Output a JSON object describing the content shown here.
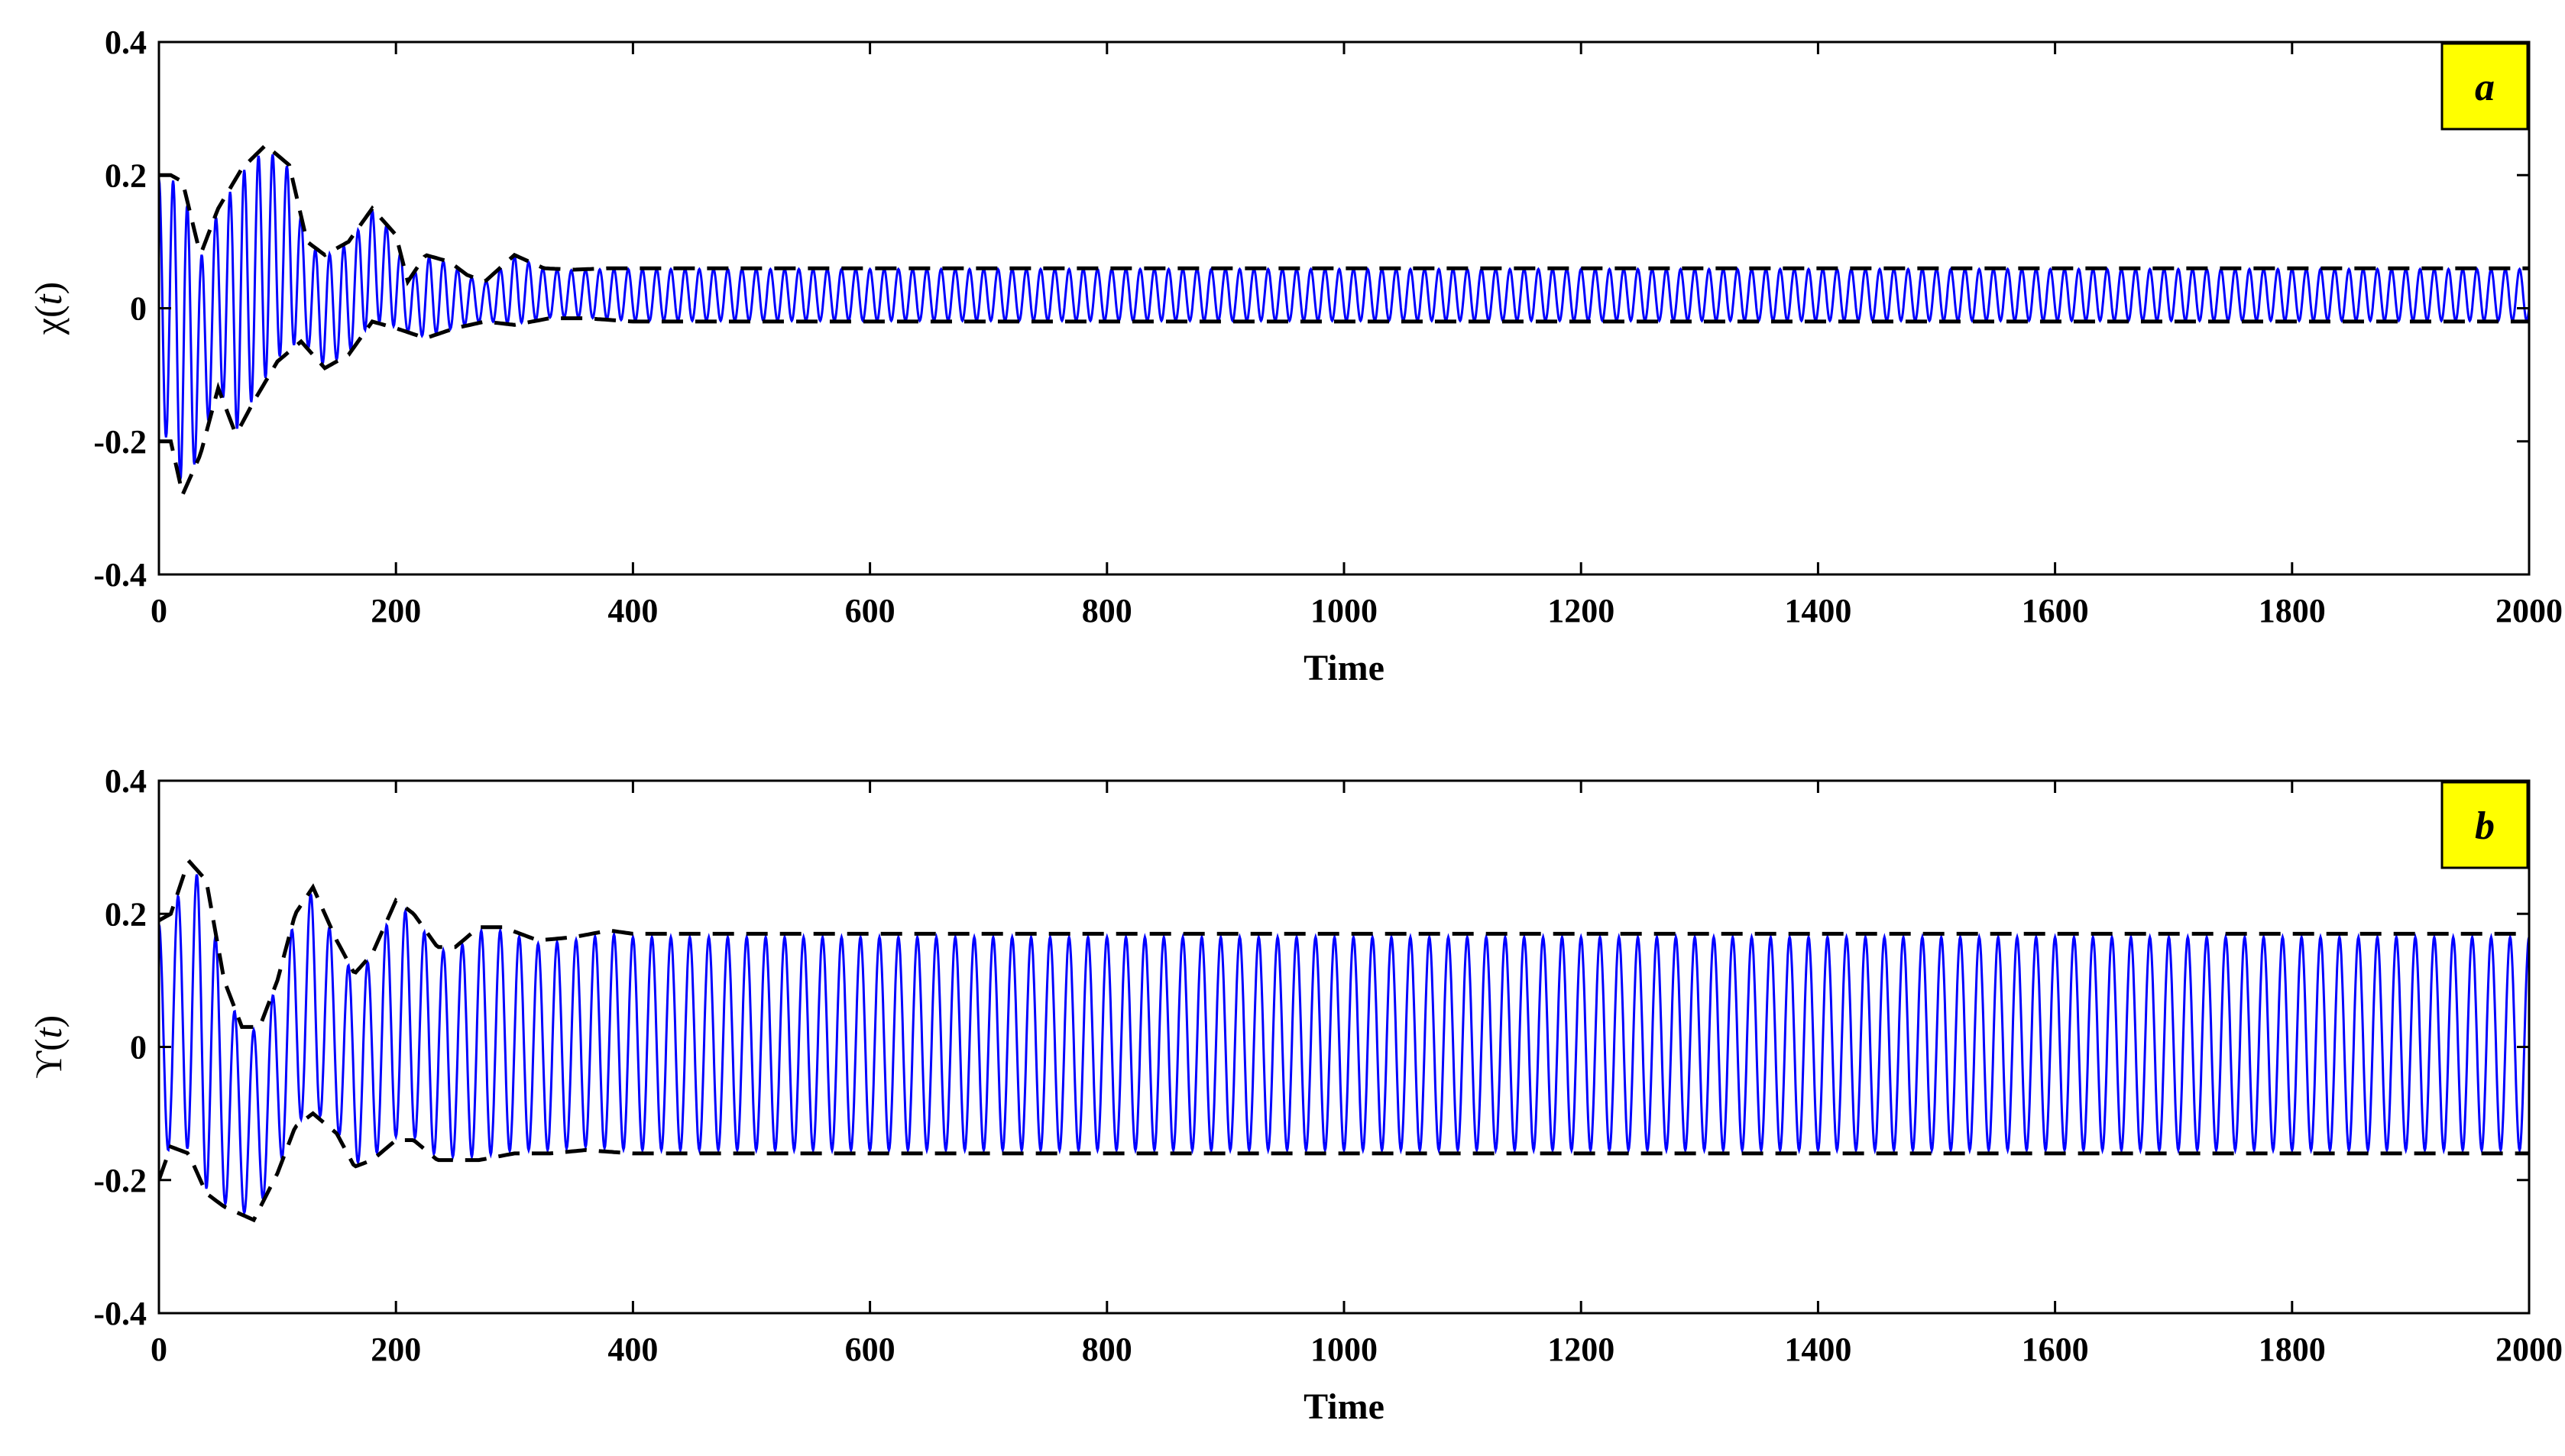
{
  "chart_data": [
    {
      "type": "line",
      "panel_label": "a",
      "ylabel_main": "χ(",
      "ylabel_var": "t",
      "ylabel_close": ")",
      "xlabel": "Time",
      "xlim": [
        0,
        2000
      ],
      "ylim": [
        -0.4,
        0.4
      ],
      "xticks": [
        0,
        200,
        400,
        600,
        800,
        1000,
        1200,
        1400,
        1600,
        1800,
        2000
      ],
      "yticks": [
        -0.4,
        -0.2,
        0,
        0.2,
        0.4
      ],
      "series": [
        {
          "role": "oscillation",
          "color": "#0000ff",
          "t_end": 2000,
          "period": 12,
          "initial_center": 0.0,
          "final_center": 0.02,
          "initial_amplitude": 0.2,
          "final_amplitude": 0.04
        },
        {
          "role": "envelope-upper",
          "color": "#000000",
          "points": [
            [
              0,
              0.2
            ],
            [
              10,
              0.2
            ],
            [
              20,
              0.19
            ],
            [
              35,
              0.08
            ],
            [
              50,
              0.15
            ],
            [
              70,
              0.21
            ],
            [
              90,
              0.245
            ],
            [
              110,
              0.215
            ],
            [
              125,
              0.1
            ],
            [
              140,
              0.08
            ],
            [
              160,
              0.1
            ],
            [
              180,
              0.15
            ],
            [
              200,
              0.11
            ],
            [
              210,
              0.04
            ],
            [
              225,
              0.08
            ],
            [
              245,
              0.07
            ],
            [
              260,
              0.05
            ],
            [
              275,
              0.04
            ],
            [
              300,
              0.08
            ],
            [
              325,
              0.06
            ],
            [
              350,
              0.058
            ],
            [
              380,
              0.06
            ],
            [
              400,
              0.06
            ],
            [
              2000,
              0.06
            ]
          ]
        },
        {
          "role": "envelope-lower",
          "color": "#000000",
          "points": [
            [
              0,
              -0.2
            ],
            [
              10,
              -0.2
            ],
            [
              20,
              -0.28
            ],
            [
              35,
              -0.22
            ],
            [
              50,
              -0.12
            ],
            [
              65,
              -0.19
            ],
            [
              80,
              -0.14
            ],
            [
              100,
              -0.08
            ],
            [
              120,
              -0.05
            ],
            [
              140,
              -0.09
            ],
            [
              160,
              -0.07
            ],
            [
              180,
              -0.02
            ],
            [
              200,
              -0.03
            ],
            [
              225,
              -0.045
            ],
            [
              250,
              -0.03
            ],
            [
              275,
              -0.02
            ],
            [
              300,
              -0.025
            ],
            [
              330,
              -0.015
            ],
            [
              360,
              -0.015
            ],
            [
              400,
              -0.02
            ],
            [
              2000,
              -0.02
            ]
          ]
        }
      ]
    },
    {
      "type": "line",
      "panel_label": "b",
      "ylabel_main": "ϒ(",
      "ylabel_var": "t",
      "ylabel_close": ")",
      "xlabel": "Time",
      "xlim": [
        0,
        2000
      ],
      "ylim": [
        -0.4,
        0.4
      ],
      "xticks": [
        0,
        200,
        400,
        600,
        800,
        1000,
        1200,
        1400,
        1600,
        1800,
        2000
      ],
      "yticks": [
        -0.4,
        -0.2,
        0,
        0.2,
        0.4
      ],
      "series": [
        {
          "role": "oscillation",
          "color": "#0000ff",
          "t_end": 2000,
          "period": 16,
          "initial_center": 0.0,
          "final_center": 0.005,
          "initial_amplitude": 0.22,
          "final_amplitude": 0.17
        },
        {
          "role": "envelope-upper",
          "color": "#000000",
          "points": [
            [
              0,
              0.19
            ],
            [
              10,
              0.2
            ],
            [
              25,
              0.28
            ],
            [
              40,
              0.25
            ],
            [
              55,
              0.1
            ],
            [
              70,
              0.03
            ],
            [
              85,
              0.03
            ],
            [
              100,
              0.1
            ],
            [
              115,
              0.2
            ],
            [
              130,
              0.24
            ],
            [
              150,
              0.16
            ],
            [
              165,
              0.11
            ],
            [
              180,
              0.14
            ],
            [
              200,
              0.22
            ],
            [
              215,
              0.2
            ],
            [
              235,
              0.15
            ],
            [
              250,
              0.15
            ],
            [
              270,
              0.18
            ],
            [
              290,
              0.18
            ],
            [
              320,
              0.16
            ],
            [
              350,
              0.165
            ],
            [
              380,
              0.175
            ],
            [
              400,
              0.17
            ],
            [
              2000,
              0.17
            ]
          ]
        },
        {
          "role": "envelope-lower",
          "color": "#000000",
          "points": [
            [
              0,
              -0.2
            ],
            [
              10,
              -0.15
            ],
            [
              25,
              -0.16
            ],
            [
              40,
              -0.22
            ],
            [
              55,
              -0.24
            ],
            [
              80,
              -0.26
            ],
            [
              100,
              -0.19
            ],
            [
              115,
              -0.12
            ],
            [
              130,
              -0.1
            ],
            [
              150,
              -0.13
            ],
            [
              165,
              -0.18
            ],
            [
              180,
              -0.17
            ],
            [
              200,
              -0.14
            ],
            [
              215,
              -0.14
            ],
            [
              235,
              -0.17
            ],
            [
              250,
              -0.17
            ],
            [
              270,
              -0.17
            ],
            [
              300,
              -0.16
            ],
            [
              330,
              -0.16
            ],
            [
              360,
              -0.155
            ],
            [
              400,
              -0.16
            ],
            [
              2000,
              -0.16
            ]
          ]
        }
      ]
    }
  ]
}
